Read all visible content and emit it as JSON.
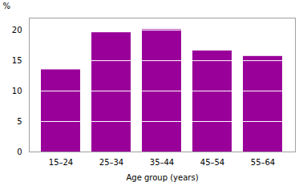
{
  "chart_data": {
    "type": "bar",
    "categories": [
      "15–24",
      "25–34",
      "35–44",
      "45–54",
      "55–64"
    ],
    "values": [
      13.5,
      19.6,
      20.1,
      16.6,
      15.7
    ],
    "color": "#990099",
    "xlabel": "Age group (years)",
    "ylabel": "%",
    "ylim": [
      0,
      22
    ],
    "yticks": [
      0,
      5,
      10,
      15,
      20
    ],
    "grid": true
  }
}
